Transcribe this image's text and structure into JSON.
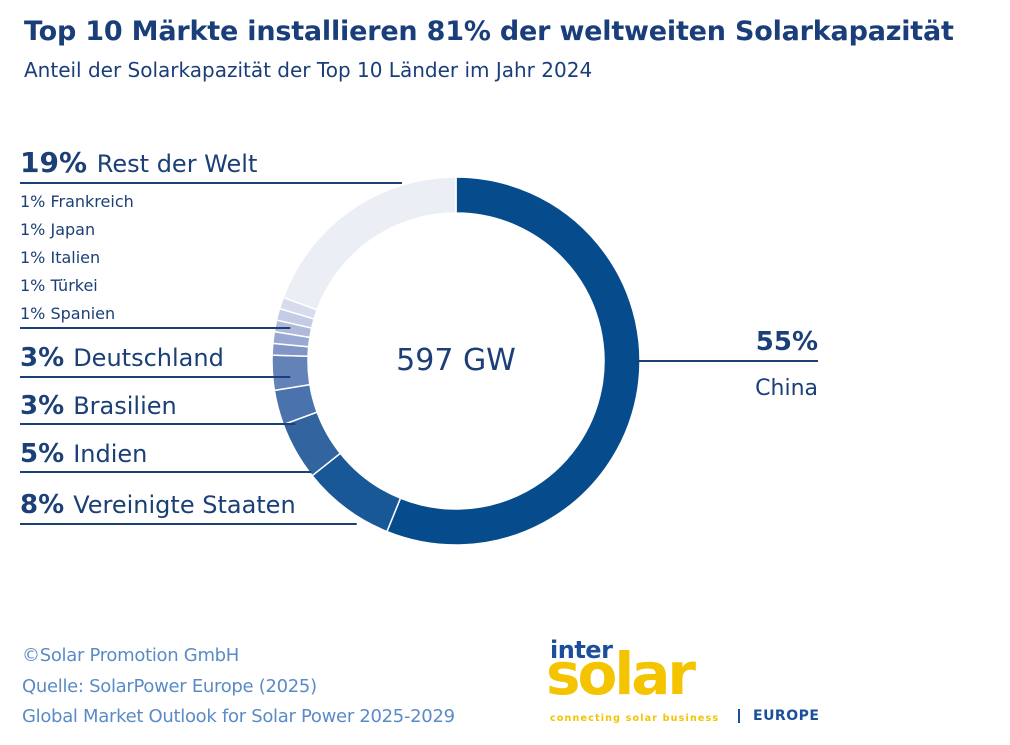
{
  "chart_data": {
    "type": "pie",
    "title": "Top 10 Märkte installieren 81% der weltweiten Solarkapazität",
    "subtitle": "Anteil der Solarkapazität der Top 10 Länder im Jahr 2024",
    "center_label": "597 GW",
    "unit": "%",
    "slices": [
      {
        "label": "China",
        "value": 55,
        "display": "55%",
        "color": "#064b8c"
      },
      {
        "label": "Vereinigte Staaten",
        "value": 8,
        "display": "8%",
        "color": "#195896"
      },
      {
        "label": "Indien",
        "value": 5,
        "display": "5%",
        "color": "#3264a0"
      },
      {
        "label": "Brasilien",
        "value": 3,
        "display": "3%",
        "color": "#4a72ac"
      },
      {
        "label": "Deutschland",
        "value": 3,
        "display": "3%",
        "color": "#6282b8"
      },
      {
        "label": "Spanien",
        "value": 1,
        "display": "1%",
        "color": "#8196c6"
      },
      {
        "label": "Türkei",
        "value": 1,
        "display": "1%",
        "color": "#98a8d0"
      },
      {
        "label": "Italien",
        "value": 1,
        "display": "1%",
        "color": "#afbadb"
      },
      {
        "label": "Japan",
        "value": 1,
        "display": "1%",
        "color": "#c4cbe5"
      },
      {
        "label": "Frankreich",
        "value": 1,
        "display": "1%",
        "color": "#d6dbee"
      },
      {
        "label": "Rest der Welt",
        "value": 19,
        "display": "19%",
        "color": "#eceef6"
      }
    ]
  },
  "footer": {
    "copyright": "©Solar Promotion GmbH",
    "source": "Quelle: SolarPower Europe (2025)",
    "publication": "Global Market Outlook for Solar Power 2025-2029"
  },
  "logo": {
    "inter": "inter",
    "solar": "solar",
    "tagline": "connecting solar business",
    "region": "EUROPE"
  }
}
